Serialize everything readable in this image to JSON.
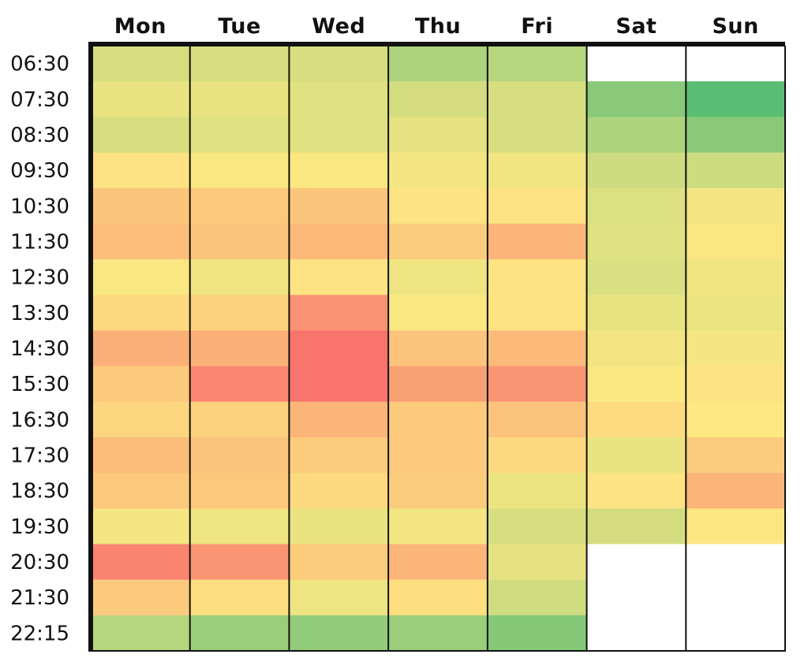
{
  "chart_data": {
    "type": "heatmap",
    "title": "",
    "xlabel": "",
    "ylabel": "",
    "legend": "none",
    "grid": false,
    "days": [
      "Mon",
      "Tue",
      "Wed",
      "Thu",
      "Fri",
      "Sat",
      "Sun"
    ],
    "times": [
      "06:30",
      "07:30",
      "08:30",
      "09:30",
      "10:30",
      "11:30",
      "12:30",
      "13:30",
      "14:30",
      "15:30",
      "16:30",
      "17:30",
      "18:30",
      "19:30",
      "20:30",
      "21:30",
      "22:15"
    ],
    "color_scale": {
      "stops": [
        "#5bbd74",
        "#cddc80",
        "#fde882",
        "#fbae78",
        "#f8696b"
      ],
      "low_value_color": "#5bbd74",
      "high_value_color": "#f8696b",
      "range": [
        0,
        1
      ]
    },
    "values": [
      [
        0.3,
        0.3,
        0.3,
        0.18,
        0.2,
        null,
        null
      ],
      [
        0.4,
        0.4,
        0.35,
        0.28,
        0.3,
        0.1,
        0.0
      ],
      [
        0.3,
        0.35,
        0.35,
        0.38,
        0.3,
        0.18,
        0.1
      ],
      [
        0.52,
        0.48,
        0.48,
        0.45,
        0.43,
        0.25,
        0.25
      ],
      [
        0.65,
        0.64,
        0.65,
        0.52,
        0.52,
        0.33,
        0.45
      ],
      [
        0.68,
        0.65,
        0.7,
        0.62,
        0.72,
        0.35,
        0.48
      ],
      [
        0.48,
        0.43,
        0.52,
        0.42,
        0.52,
        0.32,
        0.43
      ],
      [
        0.56,
        0.6,
        0.85,
        0.48,
        0.52,
        0.39,
        0.41
      ],
      [
        0.74,
        0.74,
        0.96,
        0.66,
        0.7,
        0.45,
        0.46
      ],
      [
        0.63,
        0.89,
        0.96,
        0.8,
        0.84,
        0.49,
        0.52
      ],
      [
        0.58,
        0.6,
        0.72,
        0.63,
        0.66,
        0.55,
        0.5
      ],
      [
        0.69,
        0.66,
        0.62,
        0.63,
        0.57,
        0.4,
        0.62
      ],
      [
        0.64,
        0.64,
        0.56,
        0.62,
        0.41,
        0.52,
        0.72
      ],
      [
        0.46,
        0.42,
        0.4,
        0.45,
        0.3,
        0.28,
        0.51
      ],
      [
        0.9,
        0.84,
        0.62,
        0.72,
        0.38,
        null,
        null
      ],
      [
        0.63,
        0.54,
        0.42,
        0.54,
        0.26,
        null,
        null
      ],
      [
        0.2,
        0.14,
        0.12,
        0.14,
        0.09,
        null,
        null
      ]
    ]
  }
}
